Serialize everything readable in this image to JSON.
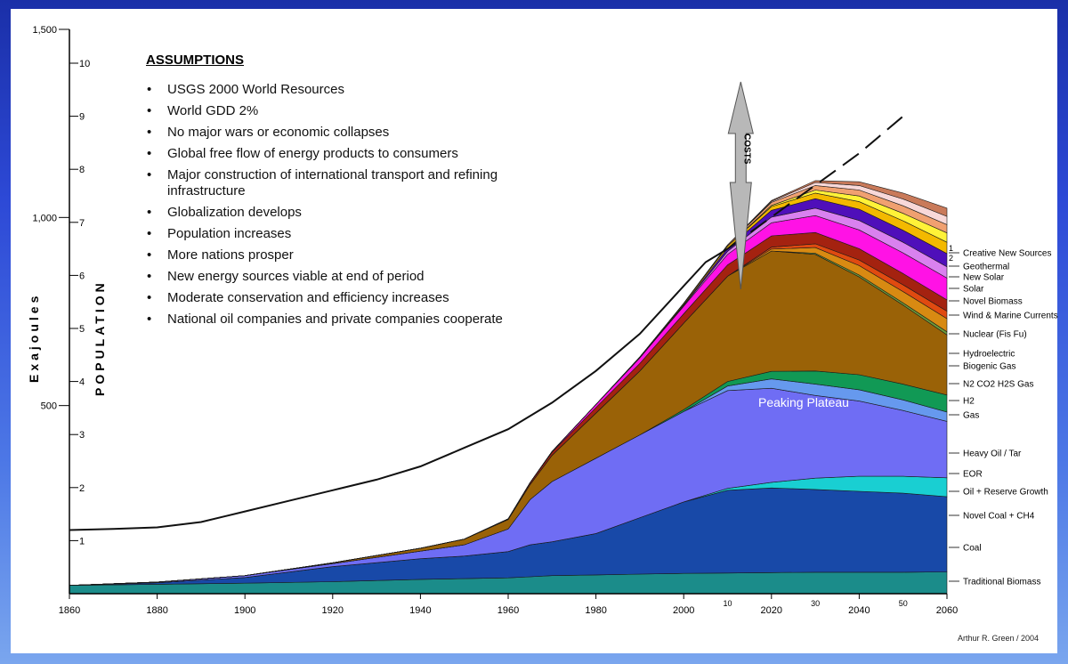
{
  "chart_data": {
    "type": "area",
    "xlabel": "",
    "ylabel": "Exajoules",
    "y2label": "POPULATION",
    "xlim": [
      1860,
      2060
    ],
    "ylim": [
      0,
      1500
    ],
    "y2lim": [
      0,
      10
    ],
    "x_ticks": [
      "1860",
      "1880",
      "1900",
      "1920",
      "1940",
      "1960",
      "1980",
      "2000",
      "2020",
      "2040",
      "2060"
    ],
    "x_minor_ticks": [
      "10",
      "30",
      "50"
    ],
    "y_ticks": [
      "500",
      "1,000",
      "1,500"
    ],
    "y2_ticks": [
      "1",
      "2",
      "3",
      "4",
      "5",
      "6",
      "7",
      "8",
      "9",
      "10"
    ],
    "annotations": {
      "plateau": "Peaking Plateau",
      "costs": "COSTS"
    },
    "population_line": {
      "name": "Population",
      "x": [
        1860,
        1870,
        1880,
        1890,
        1900,
        1910,
        1920,
        1930,
        1940,
        1950,
        1960,
        1970,
        1980,
        1990,
        2000,
        2005,
        2010
      ],
      "y": [
        1.2,
        1.22,
        1.25,
        1.35,
        1.55,
        1.75,
        1.95,
        2.15,
        2.4,
        2.75,
        3.1,
        3.6,
        4.2,
        4.9,
        5.8,
        6.25,
        6.5
      ]
    },
    "population_projection": {
      "x": [
        2010,
        2025,
        2040,
        2050
      ],
      "y": [
        6.5,
        7.4,
        8.3,
        9.0
      ]
    },
    "x_samples": [
      1860,
      1880,
      1900,
      1920,
      1940,
      1950,
      1960,
      1965,
      1970,
      1980,
      1990,
      2000,
      2010,
      2020,
      2030,
      2040,
      2050,
      2060
    ],
    "series": [
      {
        "name": "Traditional Biomass",
        "color": "#1b8c8a",
        "values": [
          22,
          25,
          28,
          32,
          38,
          40,
          42,
          45,
          48,
          50,
          52,
          54,
          55,
          56,
          57,
          57,
          57,
          58
        ]
      },
      {
        "name": "Coal",
        "color": "#1849a8",
        "values": [
          0,
          4,
          15,
          40,
          55,
          60,
          70,
          85,
          90,
          110,
          150,
          190,
          220,
          225,
          220,
          215,
          210,
          200
        ]
      },
      {
        "name": "Novel Coal + CH4",
        "color": "#19cfd2",
        "values": [
          0,
          0,
          0,
          0,
          0,
          0,
          0,
          0,
          0,
          0,
          0,
          0,
          5,
          15,
          30,
          40,
          45,
          50
        ]
      },
      {
        "name": "Oil + Reserve Growth",
        "color": "#6f6df4",
        "values": [
          0,
          2,
          5,
          8,
          20,
          30,
          60,
          120,
          160,
          200,
          220,
          240,
          260,
          250,
          220,
          200,
          175,
          150
        ]
      },
      {
        "name": "EOR",
        "color": "#6699ee",
        "values": [
          0,
          0,
          0,
          0,
          0,
          0,
          0,
          0,
          0,
          0,
          0,
          0,
          12,
          25,
          30,
          30,
          28,
          25
        ]
      },
      {
        "name": "Heavy Oil / Tar",
        "color": "#119955",
        "values": [
          0,
          0,
          0,
          0,
          0,
          0,
          0,
          0,
          0,
          0,
          0,
          5,
          12,
          20,
          35,
          40,
          42,
          45
        ]
      },
      {
        "name": "Gas",
        "color": "#9a6207",
        "values": [
          0,
          0,
          0,
          2,
          8,
          15,
          25,
          40,
          70,
          120,
          170,
          230,
          280,
          320,
          310,
          260,
          210,
          160
        ]
      },
      {
        "name": "H2",
        "color": "#6e9b3a",
        "values": [
          0,
          0,
          0,
          0,
          0,
          0,
          0,
          0,
          0,
          0,
          0,
          0,
          0,
          0,
          3,
          5,
          6,
          8
        ]
      },
      {
        "name": "N2 CO2 H2S Gas",
        "color": "#d88a12",
        "values": [
          0,
          0,
          0,
          0,
          0,
          0,
          0,
          0,
          0,
          0,
          0,
          0,
          0,
          5,
          15,
          25,
          30,
          35
        ]
      },
      {
        "name": "Biogenic Gas",
        "color": "#e04a10",
        "values": [
          0,
          0,
          0,
          0,
          0,
          0,
          0,
          0,
          0,
          0,
          0,
          0,
          0,
          5,
          10,
          15,
          18,
          20
        ]
      },
      {
        "name": "Hydroelectric",
        "color": "#a42210",
        "values": [
          0,
          0,
          0,
          0,
          0,
          0,
          2,
          5,
          8,
          15,
          20,
          25,
          30,
          30,
          30,
          30,
          30,
          30
        ]
      },
      {
        "name": "Nuclear (Fis Fu)",
        "color": "#ff12e5",
        "values": [
          0,
          0,
          0,
          0,
          0,
          0,
          0,
          0,
          2,
          8,
          15,
          20,
          28,
          35,
          45,
          50,
          55,
          58
        ]
      },
      {
        "name": "Wind & Marine Currents",
        "color": "#d981ef",
        "values": [
          0,
          0,
          0,
          0,
          0,
          0,
          0,
          0,
          0,
          0,
          0,
          2,
          8,
          15,
          20,
          25,
          28,
          30
        ]
      },
      {
        "name": "Novel Biomass",
        "color": "#4f0fba",
        "values": [
          0,
          0,
          0,
          0,
          0,
          0,
          0,
          0,
          0,
          0,
          0,
          2,
          8,
          18,
          25,
          30,
          32,
          35
        ]
      },
      {
        "name": "Solar",
        "color": "#f3b900",
        "values": [
          0,
          0,
          0,
          0,
          0,
          0,
          0,
          0,
          0,
          0,
          2,
          3,
          6,
          10,
          15,
          20,
          25,
          30
        ]
      },
      {
        "name": "New Solar",
        "color": "#fff238",
        "values": [
          0,
          0,
          0,
          0,
          0,
          0,
          0,
          0,
          0,
          0,
          0,
          0,
          0,
          3,
          8,
          15,
          20,
          25
        ]
      },
      {
        "name": "Geothermal",
        "color": "#f0a070",
        "values": [
          0,
          0,
          0,
          0,
          0,
          0,
          0,
          0,
          0,
          0,
          0,
          1,
          3,
          8,
          12,
          16,
          20,
          22
        ]
      },
      {
        "name": "Creative New Sources 2",
        "color": "#f8d8d8",
        "values": [
          0,
          0,
          0,
          0,
          0,
          0,
          0,
          0,
          0,
          0,
          0,
          0,
          0,
          3,
          8,
          12,
          18,
          22
        ]
      },
      {
        "name": "Creative New Sources 1",
        "color": "#c97a5a",
        "values": [
          0,
          0,
          0,
          0,
          0,
          0,
          0,
          0,
          0,
          0,
          0,
          0,
          0,
          2,
          5,
          10,
          16,
          22
        ]
      }
    ],
    "legend_labels": [
      {
        "text": "Creative New Sources",
        "color": "#000000"
      },
      {
        "text": "Geothermal",
        "color": "#000000"
      },
      {
        "text": "New Solar",
        "color": "#000000"
      },
      {
        "text": "Solar",
        "color": "#000000"
      },
      {
        "text": "Novel Biomass",
        "color": "#000000"
      },
      {
        "text": "Wind & Marine Currents",
        "color": "#000000"
      },
      {
        "text": "Nuclear (Fis Fu)",
        "color": "#000000"
      },
      {
        "text": "Hydroelectric",
        "color": "#000000"
      },
      {
        "text": "Biogenic Gas",
        "color": "#000000"
      },
      {
        "text": "N2  CO2  H2S Gas",
        "color": "#000000"
      },
      {
        "text": "H2",
        "color": "#000000"
      },
      {
        "text": "Gas",
        "color": "#000000"
      },
      {
        "text": "Heavy Oil / Tar",
        "color": "#000000"
      },
      {
        "text": "EOR",
        "color": "#000000"
      },
      {
        "text": "Oil + Reserve Growth",
        "color": "#000000"
      },
      {
        "text": "Novel Coal + CH4",
        "color": "#000000"
      },
      {
        "text": "Coal",
        "color": "#000000"
      },
      {
        "text": "Traditional Biomass",
        "color": "#000000"
      }
    ],
    "legend_brace_numbers": [
      "1",
      "2"
    ]
  },
  "assumptions": {
    "title": "ASSUMPTIONS",
    "items": [
      "USGS 2000 World Resources",
      "World GDD 2%",
      "No major wars or economic collapses",
      "Global free flow of energy products to consumers",
      "Major construction of international transport and refining infrastructure",
      "Globalization develops",
      "Population increases",
      "More nations prosper",
      "New energy sources viable at end of period",
      "Moderate conservation and efficiency increases",
      "National oil companies and private companies cooperate"
    ]
  },
  "credit": "Arthur R. Green / 2004"
}
